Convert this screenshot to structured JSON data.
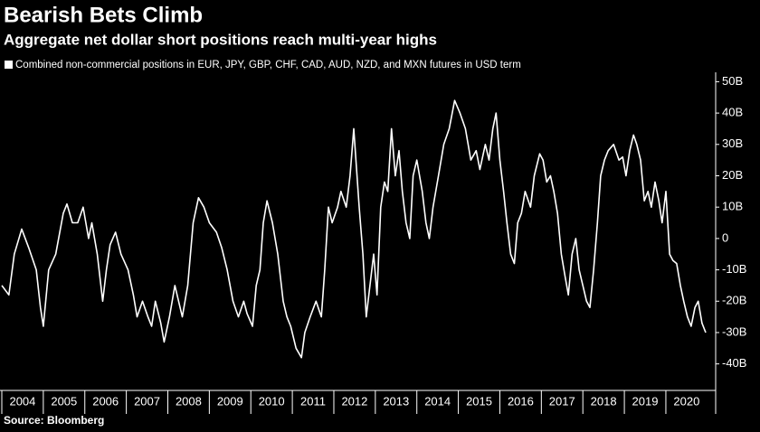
{
  "chart_data": {
    "type": "line",
    "title": "Bearish Bets Climb",
    "subtitle": "Aggregate net dollar short positions reach multi-year highs",
    "source": "Source: Bloomberg",
    "series": [
      {
        "name": "Combined non-commercial positions in EUR, JPY, GBP, CHF, CAD, AUD, NZD, and MXN futures in USD term",
        "color": "#ffffff",
        "x": [
          2004.0,
          2004.17,
          2004.3,
          2004.48,
          2004.65,
          2004.83,
          2004.93,
          2005.0,
          2005.13,
          2005.3,
          2005.48,
          2005.57,
          2005.7,
          2005.83,
          2005.96,
          2006.09,
          2006.17,
          2006.3,
          2006.43,
          2006.52,
          2006.61,
          2006.74,
          2006.87,
          2007.04,
          2007.17,
          2007.26,
          2007.39,
          2007.52,
          2007.61,
          2007.7,
          2007.83,
          2007.91,
          2008.04,
          2008.17,
          2008.26,
          2008.35,
          2008.48,
          2008.61,
          2008.74,
          2008.87,
          2009.0,
          2009.17,
          2009.3,
          2009.43,
          2009.57,
          2009.7,
          2009.83,
          2009.91,
          2010.04,
          2010.13,
          2010.22,
          2010.3,
          2010.39,
          2010.52,
          2010.65,
          2010.78,
          2010.87,
          2010.96,
          2011.09,
          2011.22,
          2011.3,
          2011.43,
          2011.57,
          2011.7,
          2011.78,
          2011.87,
          2011.96,
          2012.09,
          2012.17,
          2012.3,
          2012.39,
          2012.48,
          2012.61,
          2012.7,
          2012.78,
          2012.87,
          2012.96,
          2013.04,
          2013.13,
          2013.22,
          2013.3,
          2013.39,
          2013.48,
          2013.57,
          2013.65,
          2013.74,
          2013.83,
          2013.91,
          2014.0,
          2014.13,
          2014.22,
          2014.3,
          2014.39,
          2014.52,
          2014.65,
          2014.78,
          2014.91,
          2015.04,
          2015.17,
          2015.3,
          2015.43,
          2015.52,
          2015.65,
          2015.74,
          2015.83,
          2015.91,
          2016.0,
          2016.09,
          2016.17,
          2016.26,
          2016.35,
          2016.43,
          2016.52,
          2016.61,
          2016.74,
          2016.83,
          2016.96,
          2017.04,
          2017.13,
          2017.22,
          2017.3,
          2017.39,
          2017.48,
          2017.57,
          2017.65,
          2017.74,
          2017.83,
          2017.91,
          2018.0,
          2018.09,
          2018.17,
          2018.26,
          2018.35,
          2018.43,
          2018.52,
          2018.61,
          2018.74,
          2018.87,
          2018.96,
          2019.04,
          2019.13,
          2019.22,
          2019.3,
          2019.39,
          2019.48,
          2019.57,
          2019.65,
          2019.74,
          2019.83,
          2019.91,
          2020.0,
          2020.09,
          2020.17,
          2020.26,
          2020.35,
          2020.43,
          2020.52,
          2020.61,
          2020.7,
          2020.78,
          2020.87,
          2020.96
        ],
        "values": [
          -15,
          -18,
          -5,
          3,
          -3,
          -10,
          -22,
          -28,
          -10,
          -5,
          8,
          11,
          5,
          5,
          10,
          0,
          5,
          -5,
          -20,
          -10,
          -2,
          2,
          -5,
          -10,
          -18,
          -25,
          -20,
          -25,
          -28,
          -20,
          -27,
          -33,
          -25,
          -15,
          -20,
          -25,
          -15,
          5,
          13,
          10,
          5,
          2,
          -3,
          -10,
          -20,
          -25,
          -20,
          -24,
          -28,
          -15,
          -10,
          5,
          12,
          5,
          -5,
          -20,
          -25,
          -28,
          -35,
          -38,
          -30,
          -25,
          -20,
          -25,
          -10,
          10,
          5,
          10,
          15,
          10,
          20,
          35,
          10,
          -5,
          -25,
          -15,
          -5,
          -18,
          10,
          18,
          15,
          35,
          20,
          28,
          15,
          5,
          0,
          20,
          25,
          15,
          5,
          0,
          10,
          20,
          30,
          35,
          44,
          40,
          35,
          25,
          28,
          22,
          30,
          25,
          35,
          40,
          25,
          15,
          5,
          -5,
          -8,
          5,
          8,
          15,
          10,
          20,
          27,
          25,
          18,
          20,
          15,
          8,
          -5,
          -12,
          -18,
          -5,
          0,
          -10,
          -15,
          -20,
          -22,
          -10,
          5,
          20,
          25,
          28,
          30,
          25,
          26,
          20,
          28,
          33,
          30,
          25,
          12,
          15,
          10,
          18,
          12,
          5,
          15,
          -5,
          -7,
          -8,
          -15,
          -20,
          -25,
          -28,
          -22,
          -20,
          -27,
          -30
        ]
      }
    ],
    "xlim": [
      2004,
      2021.2
    ],
    "xticks": [
      {
        "value": 2004,
        "label": "2004"
      },
      {
        "value": 2005,
        "label": "2005"
      },
      {
        "value": 2006,
        "label": "2006"
      },
      {
        "value": 2007,
        "label": "2007"
      },
      {
        "value": 2008,
        "label": "2008"
      },
      {
        "value": 2009,
        "label": "2009"
      },
      {
        "value": 2010,
        "label": "2010"
      },
      {
        "value": 2011,
        "label": "2011"
      },
      {
        "value": 2012,
        "label": "2012"
      },
      {
        "value": 2013,
        "label": "2013"
      },
      {
        "value": 2014,
        "label": "2014"
      },
      {
        "value": 2015,
        "label": "2015"
      },
      {
        "value": 2016,
        "label": "2016"
      },
      {
        "value": 2017,
        "label": "2017"
      },
      {
        "value": 2018,
        "label": "2018"
      },
      {
        "value": 2019,
        "label": "2019"
      },
      {
        "value": 2020,
        "label": "2020"
      }
    ],
    "ylim": [
      -45,
      53
    ],
    "yticks": [
      {
        "value": 50,
        "label": "50B"
      },
      {
        "value": 40,
        "label": "40B"
      },
      {
        "value": 30,
        "label": "30B"
      },
      {
        "value": 20,
        "label": "20B"
      },
      {
        "value": 10,
        "label": "10B"
      },
      0,
      {
        "value": -10,
        "label": "-10B"
      },
      {
        "value": -20,
        "label": "-20B"
      },
      {
        "value": -30,
        "label": "-30B"
      },
      {
        "value": -40,
        "label": "-40B"
      }
    ]
  }
}
